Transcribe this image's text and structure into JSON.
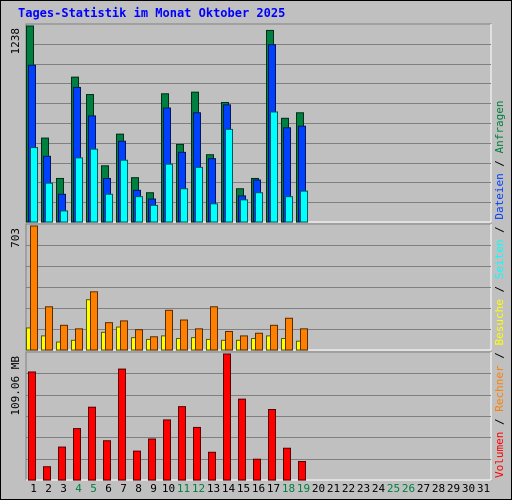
{
  "title": "Tages-Statistik im Monat Oktober 2025",
  "y_axis_labels": {
    "top": "1238",
    "middle": "703",
    "bottom": "109.06 MB"
  },
  "legend": {
    "items": [
      {
        "text": "Volumen",
        "color": "#ff0000"
      },
      {
        "text": "Rechner",
        "color": "#ff8000"
      },
      {
        "text": "Besuche",
        "color": "#ffff00"
      },
      {
        "text": "Seiten",
        "color": "#00ffff"
      },
      {
        "text": "Dateien",
        "color": "#0040ff"
      },
      {
        "text": "Anfragen",
        "color": "#008040"
      }
    ],
    "separator": " / "
  },
  "colors": {
    "background": "#c0c0c0",
    "title": "#0000ff",
    "weekday_label": "#000000",
    "weekend_label": "#008040",
    "grid": "#808080"
  },
  "chart_data": {
    "type": "bar",
    "x": [
      "1",
      "2",
      "3",
      "4",
      "5",
      "6",
      "7",
      "8",
      "9",
      "10",
      "11",
      "12",
      "13",
      "14",
      "15",
      "16",
      "17",
      "18",
      "19",
      "20",
      "21",
      "22",
      "23",
      "24",
      "25",
      "26",
      "27",
      "28",
      "29",
      "30",
      "31"
    ],
    "weekend_days": [
      "4",
      "5",
      "11",
      "12",
      "18",
      "19",
      "25",
      "26"
    ],
    "panels": [
      {
        "name": "hits",
        "ymax_label": "1238",
        "ylim": [
          0,
          1238
        ],
        "series": [
          {
            "name": "Anfragen",
            "color": "#008040",
            "values": [
              1238,
              530,
              275,
              915,
              805,
              355,
              555,
              280,
              185,
              810,
              490,
              820,
              425,
              755,
              210,
              275,
              1210,
              655,
              690,
              null,
              null,
              null,
              null,
              null,
              null,
              null,
              null,
              null,
              null,
              null,
              null
            ]
          },
          {
            "name": "Dateien",
            "color": "#0040ff",
            "values": [
              990,
              415,
              175,
              850,
              670,
              275,
              510,
              200,
              145,
              720,
              440,
              690,
              400,
              740,
              165,
              265,
              1120,
              595,
              605,
              null,
              null,
              null,
              null,
              null,
              null,
              null,
              null,
              null,
              null,
              null,
              null
            ]
          },
          {
            "name": "Seiten",
            "color": "#00ffff",
            "values": [
              470,
              245,
              70,
              405,
              460,
              175,
              390,
              160,
              105,
              365,
              210,
              345,
              115,
              585,
              140,
              185,
              695,
              160,
              195,
              null,
              null,
              null,
              null,
              null,
              null,
              null,
              null,
              null,
              null,
              null,
              null
            ]
          }
        ]
      },
      {
        "name": "visits",
        "ymax_label": "703",
        "ylim": [
          0,
          703
        ],
        "series": [
          {
            "name": "Besuche",
            "color": "#ffff00",
            "values": [
              125,
              80,
              45,
              55,
              285,
              100,
              130,
              70,
              60,
              80,
              65,
              70,
              60,
              55,
              55,
              65,
              80,
              65,
              50,
              null,
              null,
              null,
              null,
              null,
              null,
              null,
              null,
              null,
              null,
              null,
              null
            ]
          },
          {
            "name": "Rechner",
            "color": "#ff8000",
            "values": [
              703,
              245,
              140,
              120,
              330,
              155,
              165,
              115,
              75,
              225,
              170,
              120,
              245,
              105,
              80,
              95,
              140,
              180,
              120,
              null,
              null,
              null,
              null,
              null,
              null,
              null,
              null,
              null,
              null,
              null,
              null
            ]
          }
        ]
      },
      {
        "name": "volume",
        "ymax_label": "109.06 MB",
        "ylim": [
          0,
          109.06
        ],
        "series": [
          {
            "name": "Volumen",
            "color": "#ff0000",
            "values": [
              93.5,
              11.5,
              28.5,
              44.5,
              63.0,
              34.0,
              96.0,
              25.0,
              35.5,
              52.0,
              63.5,
              45.5,
              24.0,
              109.06,
              70.0,
              18.0,
              61.0,
              27.5,
              16.0,
              null,
              null,
              null,
              null,
              null,
              null,
              null,
              null,
              null,
              null,
              null,
              null
            ]
          }
        ]
      }
    ],
    "grid": true
  }
}
